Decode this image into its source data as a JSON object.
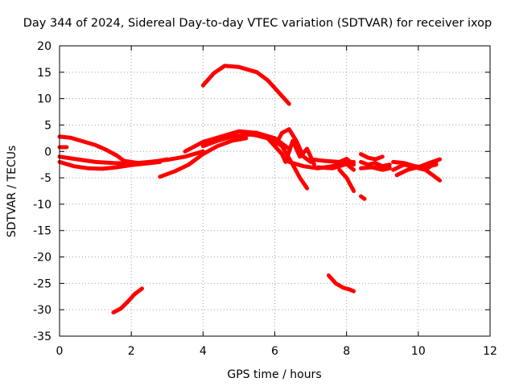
{
  "chart_data": {
    "type": "line",
    "title": "Day 344 of 2024, Sidereal Day-to-day VTEC variation (SDTVAR) for receiver ixop",
    "xlabel": "GPS time / hours",
    "ylabel": "SDTVAR / TECUs",
    "xlim": [
      0,
      12
    ],
    "ylim": [
      -35,
      20
    ],
    "xticks": [
      0,
      2,
      4,
      6,
      8,
      10,
      12
    ],
    "yticks": [
      -35,
      -30,
      -25,
      -20,
      -15,
      -10,
      -5,
      0,
      5,
      10,
      15,
      20
    ],
    "grid": true,
    "color": "#ff0000",
    "series": [
      {
        "name": "s1",
        "x": [
          0.0,
          0.3,
          0.6,
          1.0,
          1.3,
          1.6,
          1.8,
          2.2,
          2.6,
          3.0
        ],
        "y": [
          2.8,
          2.6,
          2.0,
          1.2,
          0.3,
          -0.8,
          -1.8,
          -2.2,
          -2.0,
          -1.5
        ]
      },
      {
        "name": "s2",
        "x": [
          0.0,
          0.5,
          1.0,
          1.5,
          2.0,
          2.5,
          3.0,
          3.5,
          4.0
        ],
        "y": [
          -1.0,
          -1.5,
          -2.0,
          -2.2,
          -2.3,
          -2.0,
          -1.6,
          -1.0,
          0.0
        ]
      },
      {
        "name": "s3",
        "x": [
          0.0,
          0.4,
          0.8,
          1.2,
          1.6,
          2.0,
          2.4,
          2.8
        ],
        "y": [
          -2.0,
          -2.8,
          -3.2,
          -3.3,
          -3.0,
          -2.6,
          -2.3,
          -2.0
        ]
      },
      {
        "name": "s4",
        "x": [
          0.0,
          0.2
        ],
        "y": [
          0.8,
          0.8
        ]
      },
      {
        "name": "s5",
        "x": [
          1.5,
          1.7,
          1.9,
          2.1,
          2.3
        ],
        "y": [
          -30.5,
          -29.8,
          -28.5,
          -27.0,
          -26.0
        ]
      },
      {
        "name": "s6",
        "x": [
          2.8,
          3.2,
          3.6,
          4.0,
          4.4,
          4.8,
          5.2
        ],
        "y": [
          -4.8,
          -3.8,
          -2.5,
          -0.5,
          1.0,
          2.0,
          2.5
        ]
      },
      {
        "name": "s7",
        "x": [
          3.5,
          4.0,
          4.5,
          5.0,
          5.5,
          6.0,
          6.4
        ],
        "y": [
          0.0,
          1.8,
          2.8,
          3.8,
          3.5,
          2.5,
          0.5
        ]
      },
      {
        "name": "s8",
        "x": [
          4.0,
          4.4,
          4.8,
          5.3,
          5.8,
          6.2,
          6.5,
          6.7,
          6.9
        ],
        "y": [
          1.0,
          2.0,
          2.8,
          3.2,
          2.8,
          1.0,
          -2.5,
          -5.0,
          -7.0
        ]
      },
      {
        "name": "s9",
        "x": [
          4.0,
          4.3,
          4.6,
          5.0,
          5.5,
          5.8,
          6.0,
          6.2,
          6.4
        ],
        "y": [
          12.5,
          14.8,
          16.2,
          16.0,
          15.0,
          13.5,
          12.0,
          10.5,
          9.0
        ]
      },
      {
        "name": "s10",
        "x": [
          5.5,
          5.8,
          6.0,
          6.2,
          6.3,
          6.5,
          6.7,
          6.9,
          7.1
        ],
        "y": [
          3.0,
          2.5,
          1.0,
          -0.5,
          -2.0,
          2.0,
          -1.0,
          0.5,
          -2.5
        ]
      },
      {
        "name": "s11",
        "x": [
          6.0,
          6.2,
          6.4,
          6.6,
          6.8,
          7.0
        ],
        "y": [
          1.0,
          3.5,
          4.2,
          2.0,
          -1.0,
          -2.0
        ]
      },
      {
        "name": "s12",
        "x": [
          6.4,
          6.8,
          7.2,
          7.6,
          8.0,
          8.2
        ],
        "y": [
          -2.0,
          -2.8,
          -3.2,
          -2.8,
          -2.2,
          -2.0
        ]
      },
      {
        "name": "s13",
        "x": [
          7.0,
          7.4,
          7.8,
          8.0,
          8.2
        ],
        "y": [
          -1.5,
          -1.8,
          -2.0,
          -1.4,
          -2.5
        ]
      },
      {
        "name": "s14",
        "x": [
          7.2,
          7.6,
          8.0,
          8.2
        ],
        "y": [
          -3.0,
          -3.2,
          -2.4,
          -3.5
        ]
      },
      {
        "name": "s15",
        "x": [
          7.8,
          8.0,
          8.2
        ],
        "y": [
          -3.5,
          -5.0,
          -7.5
        ]
      },
      {
        "name": "s16",
        "x": [
          8.4,
          8.5
        ],
        "y": [
          -8.5,
          -9.0
        ]
      },
      {
        "name": "s17",
        "x": [
          7.5,
          7.7,
          7.9,
          8.1,
          8.2
        ],
        "y": [
          -23.5,
          -25.0,
          -25.8,
          -26.2,
          -26.5
        ]
      },
      {
        "name": "s18",
        "x": [
          8.4,
          8.6,
          8.8,
          9.0,
          9.2
        ],
        "y": [
          -2.0,
          -2.5,
          -2.2,
          -2.8,
          -2.5
        ]
      },
      {
        "name": "s19",
        "x": [
          8.4,
          8.7,
          9.0,
          9.2
        ],
        "y": [
          -3.2,
          -3.0,
          -3.5,
          -3.2
        ]
      },
      {
        "name": "s20",
        "x": [
          8.4,
          8.6,
          8.8,
          9.0
        ],
        "y": [
          -0.5,
          -1.2,
          -1.5,
          -1.0
        ]
      },
      {
        "name": "s21",
        "x": [
          9.3,
          9.6,
          9.9,
          10.2,
          10.5
        ],
        "y": [
          -2.0,
          -2.2,
          -2.8,
          -3.0,
          -2.5
        ]
      },
      {
        "name": "s22",
        "x": [
          9.3,
          9.6,
          9.9,
          10.2,
          10.5
        ],
        "y": [
          -3.5,
          -2.5,
          -3.0,
          -3.5,
          -2.0
        ]
      },
      {
        "name": "s23",
        "x": [
          9.4,
          9.7,
          10.0,
          10.3,
          10.6
        ],
        "y": [
          -4.5,
          -3.5,
          -3.0,
          -2.2,
          -1.5
        ]
      },
      {
        "name": "s24",
        "x": [
          9.9,
          10.2,
          10.4,
          10.6
        ],
        "y": [
          -3.0,
          -3.5,
          -4.5,
          -5.5
        ]
      },
      {
        "name": "s25",
        "x": [
          8.8,
          9.0,
          9.2
        ],
        "y": [
          -3.0,
          -3.2,
          -3.0
        ]
      }
    ]
  }
}
